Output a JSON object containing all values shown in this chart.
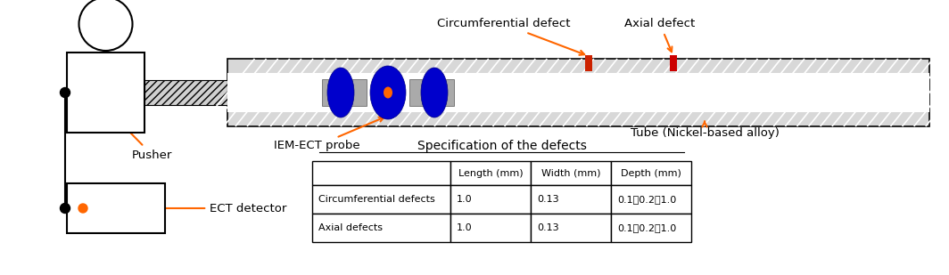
{
  "fig_width": 10.64,
  "fig_height": 3.09,
  "dpi": 100,
  "bg_color": "#ffffff",
  "label_color": "#ff6600",
  "table_title": "Specification of the defects",
  "table_headers": [
    "",
    "Length (mm)",
    "Width (mm)",
    "Depth (mm)"
  ],
  "table_row1": [
    "Circumferential defects",
    "1.0",
    "0.13",
    "0.1，0.2，1.0"
  ],
  "table_row2": [
    "Axial defects",
    "1.0",
    "0.13",
    "0.1，0.2，1.0"
  ],
  "labels": {
    "circumferential_defect": "Circumferential defect",
    "axial_defect": "Axial defect",
    "iem_ect_probe": "IEM-ECT probe",
    "tube": "Tube (Nickel-based alloy)",
    "pusher": "Pusher",
    "ect_detector": "ECT detector"
  }
}
